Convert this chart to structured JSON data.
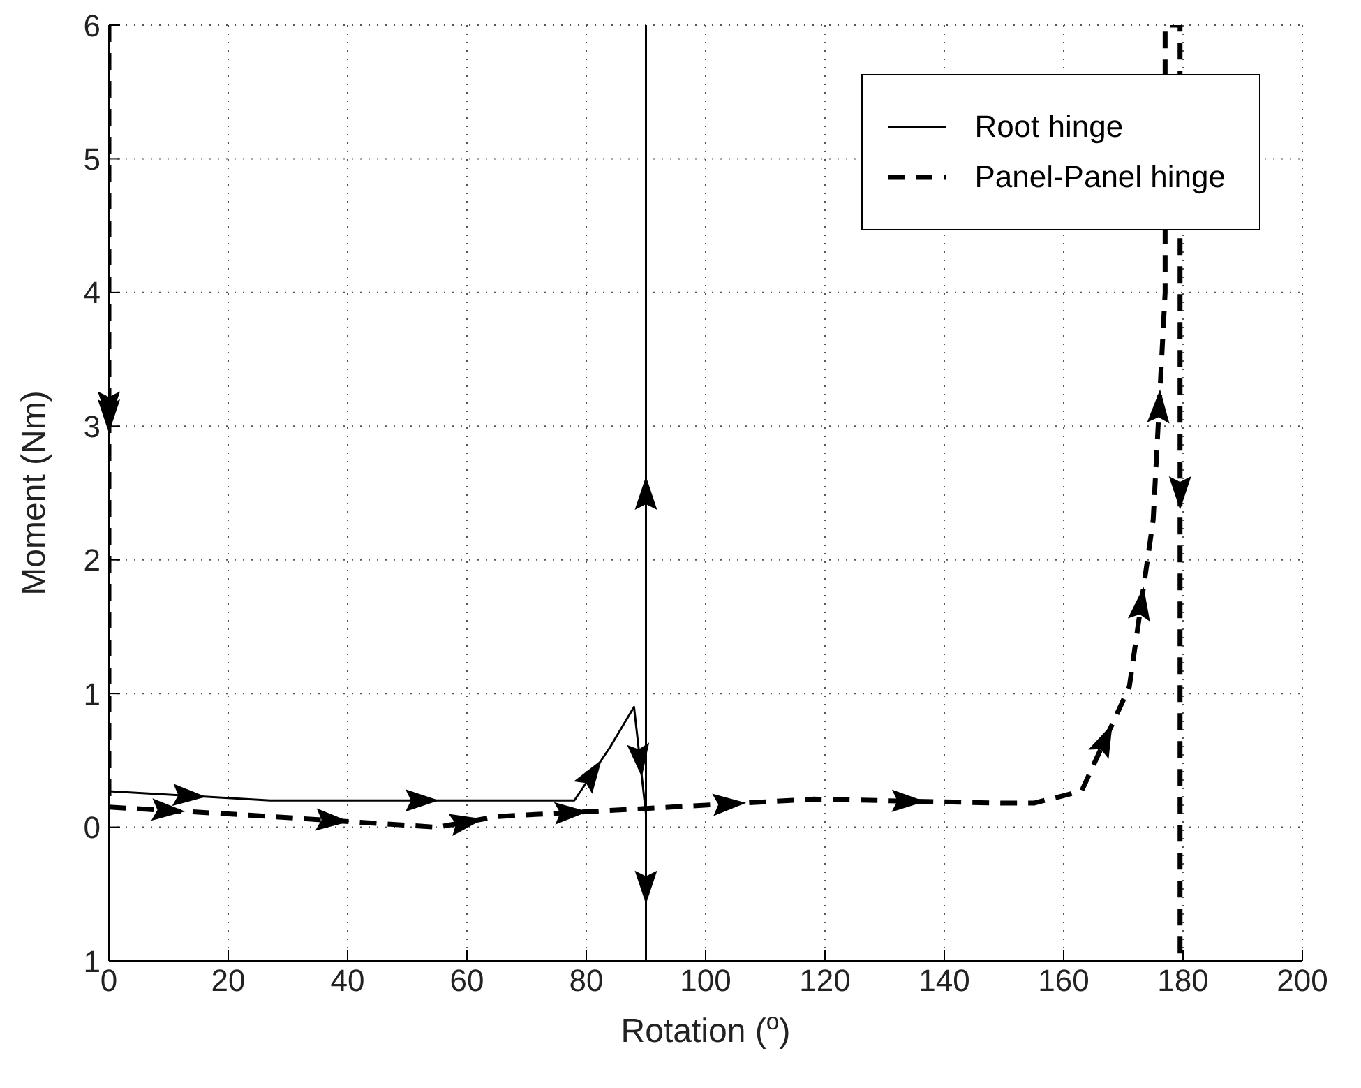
{
  "chart_data": {
    "type": "line",
    "xlabel": "Rotation ($^{o}$)",
    "ylabel": "Moment (Nm)",
    "xlim": [
      0,
      200
    ],
    "xticks": [
      0,
      20,
      40,
      60,
      80,
      100,
      120,
      140,
      160,
      180,
      200
    ],
    "ylim": [
      -1,
      6
    ],
    "yticks": [
      {
        "value": -1,
        "label": "1"
      },
      0,
      1,
      2,
      3,
      4,
      5,
      6
    ],
    "grid": true,
    "legend": "top right",
    "series": [
      {
        "name": "Root hinge",
        "color": "#000000",
        "line_style": "solid",
        "x": [
          0,
          0,
          27,
          78,
          84,
          88,
          90,
          90,
          90
        ],
        "values": [
          6,
          0.27,
          0.2,
          0.2,
          0.6,
          0.9,
          0.1,
          -1,
          6
        ]
      },
      {
        "name": "Panel-Panel hinge",
        "color": "#000000",
        "line_style": "dashed",
        "x": [
          0,
          0,
          20,
          55,
          65,
          90,
          118,
          150,
          155,
          163,
          171,
          175,
          177,
          177,
          179.5,
          179.5
        ],
        "values": [
          6,
          0.15,
          0.1,
          0,
          0.08,
          0.14,
          0.21,
          0.18,
          0.18,
          0.27,
          1.05,
          2.3,
          4,
          6,
          6,
          -1
        ]
      }
    ]
  }
}
